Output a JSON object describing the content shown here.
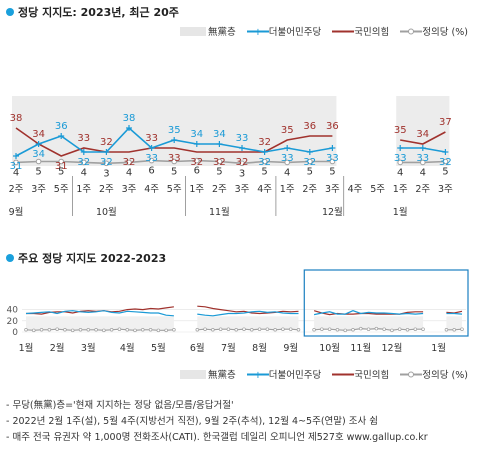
{
  "top": {
    "title": "정당 지지도: 2023년, 최근 20주",
    "legend": {
      "none": "無黨층",
      "democratic": "더불어민주당",
      "ppp": "국민의힘",
      "justice": "정의당 (%)"
    }
  },
  "bottom": {
    "title": "주요 정당 지지도 2022-2023",
    "legend": {
      "none": "無黨층",
      "democratic": "더불어민주당",
      "ppp": "국민의힘",
      "justice": "정의당 (%)"
    }
  },
  "notes": [
    "- 무당(無黨)층='현재 지지하는 정당 없음/모름/응답거절'",
    "- 2022년 2월 1주(설), 5월 4주(지방선거 직전), 9월 2주(추석), 12월 4~5주(연말) 조사 쉼",
    "- 매주 전국 유권자 약 1,000명 전화조사(CATI). 한국갤럽 데일리 오피니언 제527호 www.gallup.co.kr"
  ],
  "colors": {
    "democratic": "#1a9ad6",
    "ppp": "#a0322d",
    "justice": "#a0a0a0",
    "none_bar": "#ececec"
  },
  "chart_data": [
    {
      "type": "line",
      "title": "정당 지지도: 2023년, 최근 20주",
      "x": [
        "9월 2주",
        "9월 3주",
        "9월 5주",
        "10월 1주",
        "10월 2주",
        "10월 3주",
        "10월 4주",
        "10월 5주",
        "11월 1주",
        "11월 2주",
        "11월 3주",
        "11월 4주",
        "12월 1주",
        "12월 2주",
        "12월 3주",
        "12월 4주",
        "12월 5주",
        "1월 1주",
        "1월 2주",
        "1월 3주"
      ],
      "x_tick_labels": [
        "2주",
        "3주",
        "5주",
        "1주",
        "2주",
        "3주",
        "4주",
        "5주",
        "1주",
        "2주",
        "3주",
        "4주",
        "1주",
        "2주",
        "3주",
        "4주",
        "5주",
        "1주",
        "2주",
        "3주"
      ],
      "month_labels": [
        {
          "label": "9월",
          "index": 0
        },
        {
          "label": "10월",
          "index": 4
        },
        {
          "label": "11월",
          "index": 9
        },
        {
          "label": "12월",
          "index": 14
        },
        {
          "label": "1월",
          "index": 17
        }
      ],
      "series": [
        {
          "name": "더불어민주당",
          "values": [
            31,
            34,
            36,
            32,
            32,
            38,
            33,
            35,
            34,
            34,
            33,
            32,
            33,
            32,
            33,
            null,
            null,
            33,
            33,
            32
          ]
        },
        {
          "name": "국민의힘",
          "values": [
            38,
            34,
            31,
            33,
            32,
            32,
            33,
            33,
            32,
            32,
            32,
            32,
            35,
            36,
            36,
            null,
            null,
            35,
            34,
            37
          ]
        },
        {
          "name": "정의당",
          "values": [
            4,
            5,
            5,
            4,
            3,
            4,
            6,
            5,
            6,
            5,
            3,
            5,
            4,
            5,
            5,
            null,
            null,
            4,
            4,
            5
          ]
        },
        {
          "name": "無黨층",
          "type": "bar",
          "values": [
            null,
            null,
            null,
            null,
            null,
            null,
            null,
            null,
            null,
            null,
            null,
            null,
            null,
            null,
            null,
            null,
            null,
            null,
            null,
            null
          ]
        }
      ],
      "gap": [
        "12월 4주",
        "12월 5주"
      ],
      "ylim": [
        0,
        45
      ]
    },
    {
      "type": "line",
      "title": "주요 정당 지지도 2022-2023",
      "x_month_labels": [
        "1월",
        "2월",
        "3월",
        "4월",
        "5월",
        "6월",
        "7월",
        "8월",
        "9월",
        "10월",
        "11월",
        "12월",
        "1월"
      ],
      "series": [
        {
          "name": "더불어민주당",
          "values": [
            33,
            34,
            35,
            36,
            33,
            37,
            38,
            36,
            35,
            36,
            38,
            35,
            34,
            37,
            36,
            35,
            34,
            34,
            30,
            29,
            null,
            null,
            32,
            30,
            29,
            31,
            33,
            33,
            34,
            36,
            37,
            35,
            36,
            34,
            33,
            33,
            null,
            31,
            34,
            36,
            32,
            32,
            38,
            33,
            35,
            34,
            34,
            33,
            32,
            33,
            32,
            33,
            null,
            null,
            33,
            33,
            32
          ]
        },
        {
          "name": "국민의힘",
          "values": [
            33,
            33,
            32,
            35,
            36,
            36,
            34,
            37,
            38,
            37,
            38,
            36,
            37,
            40,
            41,
            40,
            42,
            41,
            43,
            45,
            null,
            null,
            46,
            45,
            42,
            40,
            38,
            36,
            37,
            34,
            33,
            34,
            35,
            37,
            36,
            37,
            null,
            38,
            34,
            31,
            33,
            32,
            32,
            33,
            33,
            32,
            32,
            32,
            32,
            35,
            36,
            36,
            null,
            null,
            35,
            34,
            37
          ]
        },
        {
          "name": "정의당",
          "values": [
            4,
            3,
            4,
            4,
            5,
            4,
            3,
            4,
            4,
            4,
            3,
            4,
            5,
            4,
            3,
            4,
            4,
            3,
            3,
            4,
            null,
            null,
            4,
            5,
            4,
            5,
            5,
            4,
            5,
            4,
            5,
            5,
            4,
            5,
            5,
            4,
            null,
            4,
            5,
            5,
            4,
            3,
            4,
            6,
            5,
            6,
            5,
            3,
            5,
            4,
            5,
            5,
            null,
            null,
            4,
            4,
            5
          ]
        }
      ],
      "y_ticks": [
        0,
        20,
        40
      ],
      "ylim": [
        0,
        50
      ]
    }
  ]
}
